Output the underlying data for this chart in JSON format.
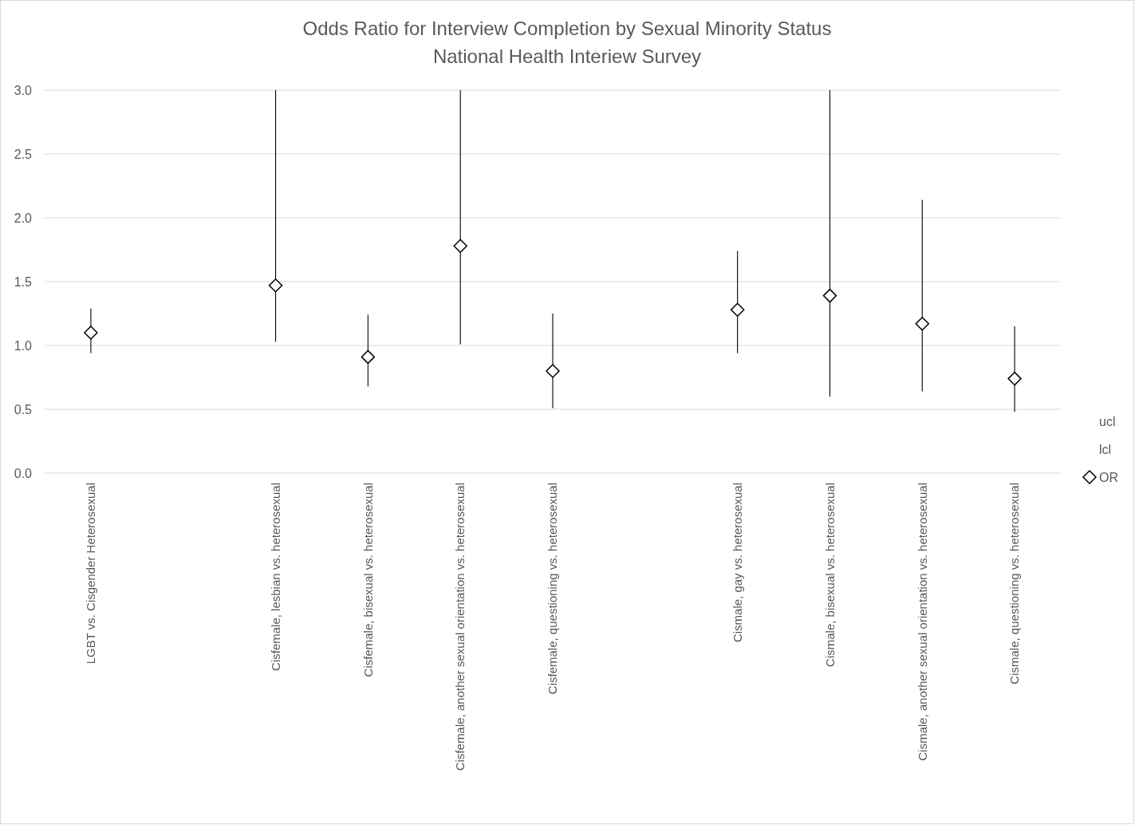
{
  "chart_data": {
    "type": "scatter",
    "title": "Odds Ratio for Interview Completion by Sexual Minority Status",
    "subtitle": "National Health Interiew Survey",
    "categories": [
      "LGBT vs. Cisgender Heterosexual",
      null,
      "Cisfemale, lesbian vs. heterosexual",
      "Cisfemale, bisexual vs. heterosexual",
      "Cisfemale, another sexual orientation vs. heterosexual",
      "Cisfemale, questioning vs. heterosexual",
      null,
      "Cismale, gay vs. heterosexual",
      "Cismale, bisexual vs. heterosexual",
      "Cismale, another sexual orientation vs. heterosexual",
      "Cismale, questioning vs. heterosexual"
    ],
    "series": [
      {
        "name": "OR",
        "marker": "diamond",
        "color": "#000000",
        "values": [
          1.1,
          null,
          1.47,
          0.91,
          1.78,
          0.8,
          null,
          1.28,
          1.39,
          1.17,
          0.74
        ],
        "errors": [
          [
            0.94,
            1.29
          ],
          null,
          [
            1.03,
            3.0
          ],
          [
            0.68,
            1.24
          ],
          [
            1.01,
            3.0
          ],
          [
            0.51,
            1.25
          ],
          null,
          [
            0.94,
            1.74
          ],
          [
            0.6,
            3.0
          ],
          [
            0.64,
            2.14
          ],
          [
            0.48,
            1.15
          ]
        ]
      }
    ],
    "annotations": [
      "ucl",
      "lcl"
    ],
    "ylim": [
      0,
      3
    ],
    "yticks": [
      {
        "value": 0,
        "label": "0.0"
      },
      {
        "value": 0.5,
        "label": "0.5"
      },
      {
        "value": 1,
        "label": "1.0"
      },
      {
        "value": 1.5,
        "label": "1.5"
      },
      {
        "value": 2,
        "label": "2.0"
      },
      {
        "value": 2.5,
        "label": "2.5"
      },
      {
        "value": 3,
        "label": "3.0"
      }
    ],
    "grid": "y",
    "legend": "right"
  }
}
